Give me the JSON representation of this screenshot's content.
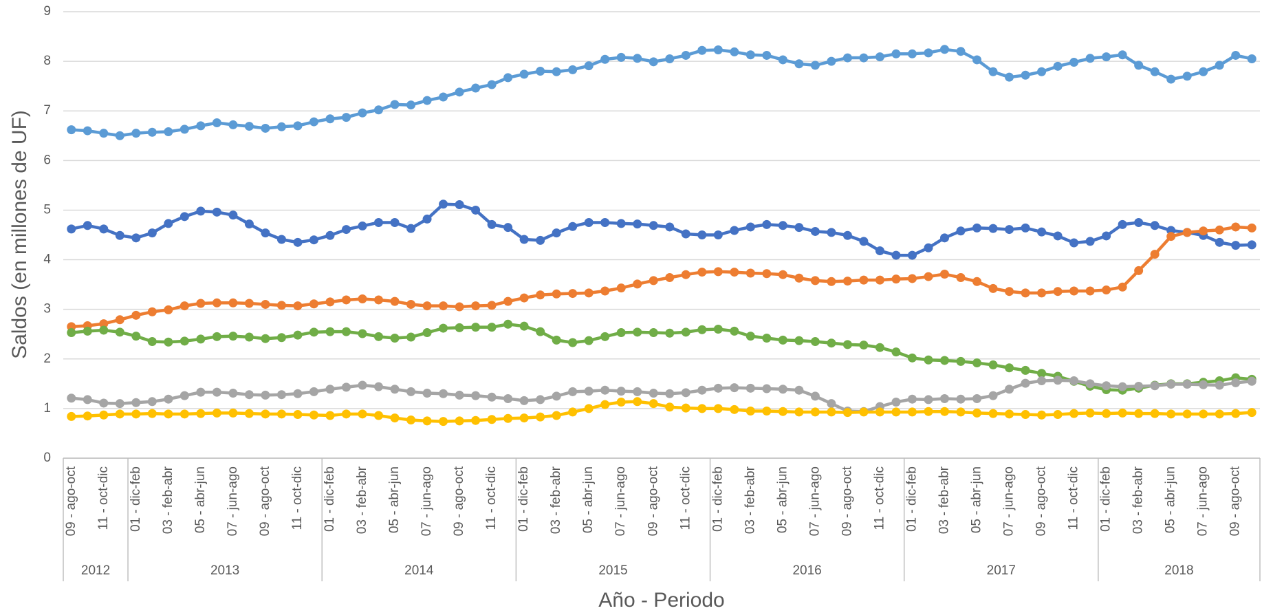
{
  "chart_data": {
    "type": "line",
    "y_label": "Saldos (en millones de UF)",
    "x_label": "Año - Periodo",
    "categories": [
      "09 - ago-oct",
      null,
      "11 - oct-dic",
      null,
      "01 - dic-feb",
      null,
      "03 - feb-abr",
      null,
      "05 - abr-jun",
      null,
      "07 - jun-ago",
      null,
      "09 - ago-oct",
      null,
      "11 - oct-dic",
      null,
      "01 - dic-feb",
      null,
      "03 - feb-abr",
      null,
      "05 - abr-jun",
      null,
      "07 - jun-ago",
      null,
      "09 - ago-oct",
      null,
      "11 - oct-dic",
      null,
      "01 - dic-feb",
      null,
      "03 - feb-abr",
      null,
      "05 - abr-jun",
      null,
      "07 - jun-ago",
      null,
      "09 - ago-oct",
      null,
      "11 - oct-dic",
      null,
      "01 - dic-feb",
      null,
      "03 - feb-abr",
      null,
      "05 - abr-jun",
      null,
      "07 - jun-ago",
      null,
      "09 - ago-oct",
      null,
      "11 - oct-dic",
      null,
      "01 - dic-feb",
      null,
      "03 - feb-abr",
      null,
      "05 - abr-jun",
      null,
      "07 - jun-ago",
      null,
      "09 - ago-oct",
      null,
      "11 - oct-dic",
      null,
      "01 - dic-feb",
      null,
      "03 - feb-abr",
      null,
      "05 - abr-jun",
      null,
      "07 - jun-ago",
      null,
      "09 - ago-oct",
      null
    ],
    "x_groups": [
      {
        "label": "2012",
        "categories": 4
      },
      {
        "label": "2013",
        "categories": 12
      },
      {
        "label": "2014",
        "categories": 12
      },
      {
        "label": "2015",
        "categories": 12
      },
      {
        "label": "2016",
        "categories": 12
      },
      {
        "label": "2017",
        "categories": 12
      },
      {
        "label": "2018",
        "categories": 10
      }
    ],
    "ylim": [
      0,
      9
    ],
    "yticks": [
      0,
      1,
      2,
      3,
      4,
      5,
      6,
      7,
      8,
      9
    ],
    "grid": true,
    "series": [
      {
        "color": "#5b9bd5",
        "values": [
          6.62,
          6.6,
          6.55,
          6.5,
          6.55,
          6.57,
          6.58,
          6.63,
          6.7,
          6.76,
          6.72,
          6.69,
          6.65,
          6.68,
          6.7,
          6.78,
          6.84,
          6.87,
          6.96,
          7.02,
          7.13,
          7.12,
          7.21,
          7.28,
          7.38,
          7.46,
          7.53,
          7.67,
          7.74,
          7.8,
          7.79,
          7.83,
          7.91,
          8.04,
          8.08,
          8.06,
          7.99,
          8.05,
          8.12,
          8.22,
          8.23,
          8.19,
          8.13,
          8.12,
          8.03,
          7.95,
          7.92,
          8.0,
          8.07,
          8.07,
          8.09,
          8.15,
          8.15,
          8.17,
          8.24,
          8.2,
          8.03,
          7.79,
          7.68,
          7.72,
          7.79,
          7.9,
          7.98,
          8.06,
          8.09,
          8.13,
          7.92,
          7.79,
          7.64,
          7.7,
          7.79,
          7.92,
          8.12,
          8.05
        ]
      },
      {
        "color": "#4472c4",
        "values": [
          4.62,
          4.69,
          4.62,
          4.49,
          4.44,
          4.54,
          4.73,
          4.87,
          4.98,
          4.96,
          4.9,
          4.72,
          4.54,
          4.41,
          4.35,
          4.4,
          4.49,
          4.61,
          4.68,
          4.75,
          4.75,
          4.63,
          4.82,
          5.12,
          5.11,
          5.0,
          4.71,
          4.65,
          4.41,
          4.39,
          4.54,
          4.67,
          4.75,
          4.75,
          4.73,
          4.72,
          4.69,
          4.66,
          4.52,
          4.5,
          4.5,
          4.59,
          4.66,
          4.71,
          4.69,
          4.65,
          4.57,
          4.55,
          4.49,
          4.37,
          4.18,
          4.09,
          4.09,
          4.24,
          4.44,
          4.58,
          4.64,
          4.63,
          4.61,
          4.64,
          4.56,
          4.48,
          4.34,
          4.37,
          4.48,
          4.71,
          4.75,
          4.69,
          4.59,
          4.55,
          4.49,
          4.35,
          4.29,
          4.3
        ]
      },
      {
        "color": "#ed7d31",
        "values": [
          2.65,
          2.67,
          2.71,
          2.79,
          2.88,
          2.95,
          2.99,
          3.07,
          3.12,
          3.13,
          3.13,
          3.12,
          3.1,
          3.08,
          3.07,
          3.11,
          3.15,
          3.19,
          3.21,
          3.19,
          3.16,
          3.1,
          3.07,
          3.07,
          3.05,
          3.07,
          3.08,
          3.16,
          3.23,
          3.29,
          3.31,
          3.32,
          3.33,
          3.37,
          3.43,
          3.51,
          3.58,
          3.64,
          3.7,
          3.75,
          3.76,
          3.75,
          3.73,
          3.72,
          3.7,
          3.63,
          3.58,
          3.56,
          3.57,
          3.59,
          3.59,
          3.61,
          3.62,
          3.66,
          3.71,
          3.64,
          3.56,
          3.42,
          3.36,
          3.33,
          3.33,
          3.36,
          3.37,
          3.37,
          3.39,
          3.45,
          3.78,
          4.11,
          4.47,
          4.55,
          4.58,
          4.6,
          4.66,
          4.64
        ]
      },
      {
        "color": "#70ad47",
        "values": [
          2.53,
          2.56,
          2.58,
          2.54,
          2.46,
          2.35,
          2.34,
          2.36,
          2.4,
          2.45,
          2.46,
          2.44,
          2.41,
          2.43,
          2.48,
          2.54,
          2.55,
          2.55,
          2.51,
          2.45,
          2.42,
          2.44,
          2.53,
          2.62,
          2.63,
          2.64,
          2.64,
          2.7,
          2.66,
          2.55,
          2.38,
          2.33,
          2.37,
          2.45,
          2.53,
          2.54,
          2.53,
          2.52,
          2.54,
          2.59,
          2.6,
          2.56,
          2.46,
          2.42,
          2.38,
          2.37,
          2.35,
          2.32,
          2.29,
          2.28,
          2.23,
          2.14,
          2.02,
          1.98,
          1.97,
          1.95,
          1.92,
          1.88,
          1.82,
          1.77,
          1.71,
          1.65,
          1.55,
          1.45,
          1.38,
          1.37,
          1.41,
          1.47,
          1.5,
          1.5,
          1.53,
          1.56,
          1.62,
          1.59
        ]
      },
      {
        "color": "#a5a5a5",
        "values": [
          1.21,
          1.18,
          1.11,
          1.1,
          1.12,
          1.14,
          1.19,
          1.26,
          1.33,
          1.33,
          1.31,
          1.28,
          1.27,
          1.28,
          1.3,
          1.34,
          1.39,
          1.43,
          1.47,
          1.44,
          1.39,
          1.34,
          1.31,
          1.3,
          1.27,
          1.26,
          1.23,
          1.2,
          1.16,
          1.18,
          1.25,
          1.34,
          1.35,
          1.37,
          1.35,
          1.34,
          1.31,
          1.3,
          1.32,
          1.37,
          1.41,
          1.42,
          1.41,
          1.4,
          1.39,
          1.37,
          1.25,
          1.1,
          0.95,
          0.94,
          1.04,
          1.13,
          1.19,
          1.18,
          1.2,
          1.19,
          1.2,
          1.26,
          1.39,
          1.51,
          1.56,
          1.57,
          1.56,
          1.5,
          1.46,
          1.44,
          1.45,
          1.46,
          1.49,
          1.49,
          1.48,
          1.47,
          1.52,
          1.55
        ]
      },
      {
        "color": "#ffc000",
        "values": [
          0.84,
          0.85,
          0.87,
          0.89,
          0.89,
          0.9,
          0.89,
          0.89,
          0.9,
          0.91,
          0.91,
          0.9,
          0.89,
          0.89,
          0.88,
          0.87,
          0.86,
          0.89,
          0.89,
          0.86,
          0.81,
          0.77,
          0.75,
          0.74,
          0.75,
          0.76,
          0.78,
          0.8,
          0.81,
          0.83,
          0.86,
          0.93,
          1.0,
          1.08,
          1.13,
          1.14,
          1.1,
          1.03,
          1.01,
          1.0,
          1.0,
          0.98,
          0.95,
          0.95,
          0.94,
          0.93,
          0.93,
          0.93,
          0.92,
          0.93,
          0.93,
          0.93,
          0.93,
          0.94,
          0.94,
          0.93,
          0.91,
          0.9,
          0.89,
          0.88,
          0.87,
          0.88,
          0.9,
          0.91,
          0.9,
          0.91,
          0.9,
          0.9,
          0.89,
          0.89,
          0.89,
          0.89,
          0.9,
          0.92
        ]
      }
    ]
  }
}
